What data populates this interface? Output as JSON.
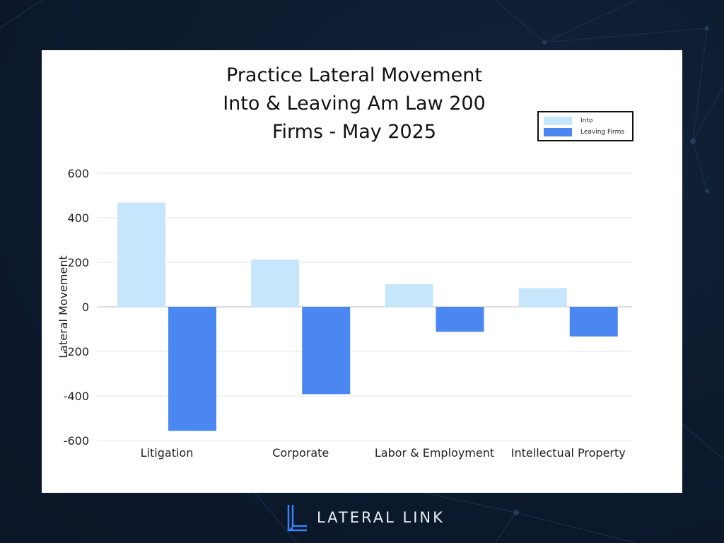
{
  "chart_data": {
    "type": "bar",
    "title_lines": [
      "Practice Lateral Movement",
      "Into & Leaving Am Law 200",
      "Firms - May 2025"
    ],
    "ylabel": "Lateral Movement",
    "xlabel": "",
    "ylim": [
      -600,
      600
    ],
    "yticks": [
      600,
      400,
      200,
      0,
      -200,
      -400,
      -600
    ],
    "ytick_labels": [
      "600",
      "400",
      "200",
      "0",
      "-200",
      "-400",
      "-600"
    ],
    "categories": [
      "Litigation",
      "Corporate",
      "Labor & Employment",
      "Intellectual Property"
    ],
    "series": [
      {
        "name": "Into",
        "values": [
          468,
          212,
          102,
          84
        ],
        "color": "#c5e6fb"
      },
      {
        "name": "Leaving Firms",
        "values": [
          -557,
          -392,
          -112,
          -133
        ],
        "color": "#4a87f0"
      }
    ],
    "grid": true,
    "legend": "top-right"
  },
  "brand": {
    "name": "LATERAL LINK",
    "logo_icon": "lateral-link-logo-icon"
  },
  "colors": {
    "background": "#0d1a2d",
    "card": "#ffffff",
    "gridline": "#e6e6e6",
    "logo": "#3b82f6"
  }
}
